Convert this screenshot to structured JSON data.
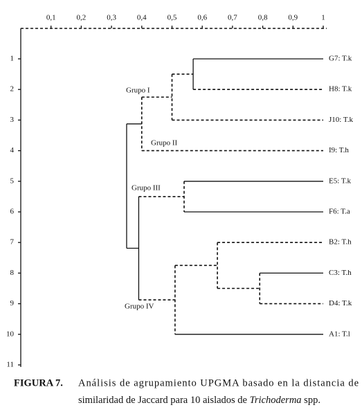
{
  "chart_data": {
    "type": "dendrogram",
    "leaves": [
      "G7: T.k",
      "H8: T.k",
      "J10: T.k",
      "I9: T.h",
      "E5: T.k",
      "F6: T.a",
      "B2: T.h",
      "C3: T.h",
      "D4: T.k",
      "A1: T.l"
    ],
    "merges": [
      0.57,
      0.5,
      0.4,
      0.54,
      0.79,
      0.65,
      0.51,
      0.39,
      0.35
    ],
    "xlim": [
      0,
      1
    ],
    "xticks": [
      {
        "value": 0.1,
        "label": "0,1"
      },
      {
        "value": 0.2,
        "label": "0,2"
      },
      {
        "value": 0.3,
        "label": "0,3"
      },
      {
        "value": 0.4,
        "label": "0,4"
      },
      {
        "value": 0.5,
        "label": "0,5"
      },
      {
        "value": 0.6,
        "label": "0,6"
      },
      {
        "value": 0.7,
        "label": "0,7"
      },
      {
        "value": 0.8,
        "label": "0,8"
      },
      {
        "value": 0.9,
        "label": "0,9"
      },
      1
    ],
    "ylim": [
      0,
      11
    ],
    "yticks": [
      1,
      2,
      3,
      4,
      5,
      6,
      7,
      8,
      9,
      10,
      11
    ],
    "annotations": [
      "Grupo I",
      "Grupo II",
      "Grupo III",
      "Grupo IV"
    ],
    "caption": {
      "label": "FIGURA 7.",
      "line1": "Análisis de agrupamiento UPGMA basado en la distancia de",
      "line2": "similaridad de Jaccard para 10 aislados de",
      "genus": "Trichoderma",
      "suffix": "spp."
    }
  }
}
